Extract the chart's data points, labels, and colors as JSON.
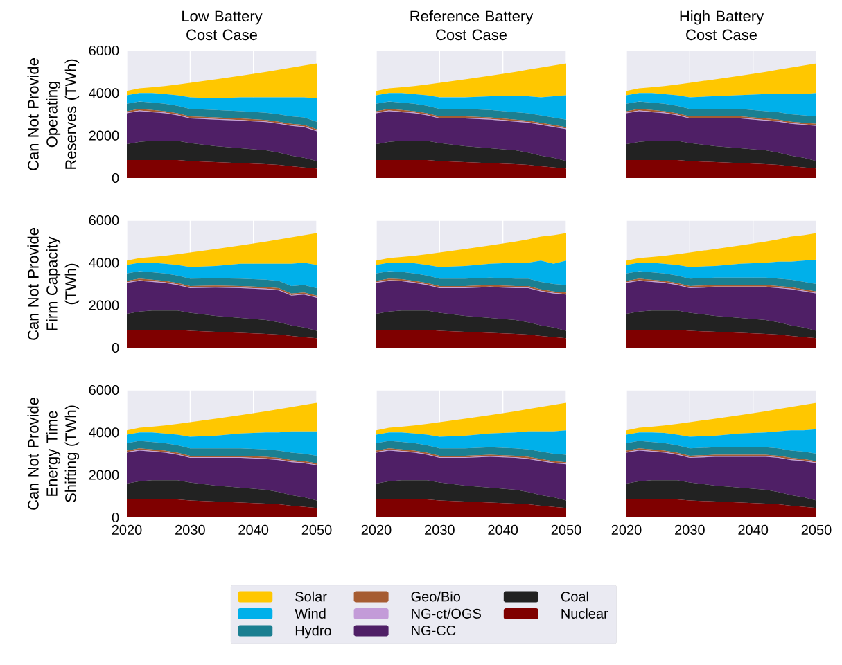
{
  "chart_data": [
    {
      "type": "area",
      "stacked": true,
      "title": "Low Battery\nCost Case",
      "ylabel": "Can Not Provide\nOperating\nReserves (TWh)",
      "x": [
        2020,
        2022,
        2024,
        2026,
        2028,
        2030,
        2034,
        2038,
        2042,
        2044,
        2046,
        2048,
        2050
      ],
      "xlim": [
        2020,
        2050
      ],
      "ylim": [
        0,
        6000
      ],
      "xticks": [
        2020,
        2030,
        2040,
        2050
      ],
      "yticks": [
        0,
        2000,
        4000,
        6000
      ],
      "grid": true,
      "tick_labels": "y",
      "series": [
        {
          "color": "#7f0000",
          "values": [
            850,
            850,
            850,
            850,
            850,
            800,
            750,
            700,
            650,
            620,
            550,
            500,
            450
          ]
        },
        {
          "color": "#222222",
          "values": [
            750,
            850,
            900,
            900,
            900,
            850,
            750,
            700,
            650,
            580,
            500,
            450,
            350
          ]
        },
        {
          "color": "#4f1f66",
          "values": [
            1450,
            1450,
            1350,
            1300,
            1200,
            1150,
            1250,
            1300,
            1330,
            1350,
            1400,
            1450,
            1400
          ]
        },
        {
          "color": "#c39bd8",
          "values": [
            30,
            30,
            30,
            30,
            30,
            30,
            30,
            30,
            30,
            30,
            30,
            30,
            30
          ]
        },
        {
          "color": "#a65c32",
          "values": [
            70,
            70,
            70,
            70,
            70,
            70,
            70,
            70,
            70,
            70,
            70,
            70,
            70
          ]
        },
        {
          "color": "#1b7f91",
          "values": [
            350,
            350,
            350,
            350,
            350,
            350,
            350,
            350,
            340,
            350,
            350,
            350,
            350
          ]
        },
        {
          "color": "#00b0ea",
          "values": [
            400,
            400,
            450,
            450,
            500,
            550,
            550,
            650,
            730,
            800,
            900,
            950,
            1100
          ]
        },
        {
          "color": "#ffc700",
          "values": [
            200,
            220,
            270,
            380,
            500,
            680,
            900,
            1020,
            1200,
            1300,
            1400,
            1500,
            1650
          ]
        }
      ]
    },
    {
      "type": "area",
      "stacked": true,
      "title": "Reference Battery\nCost Case",
      "x": [
        2020,
        2022,
        2024,
        2026,
        2028,
        2030,
        2034,
        2038,
        2042,
        2044,
        2046,
        2048,
        2050
      ],
      "xlim": [
        2020,
        2050
      ],
      "ylim": [
        0,
        6000
      ],
      "xticks": [
        2020,
        2030,
        2040,
        2050
      ],
      "yticks": [
        0,
        2000,
        4000,
        6000
      ],
      "grid": true,
      "tick_labels": false,
      "series": [
        {
          "color": "#7f0000",
          "values": [
            850,
            850,
            850,
            850,
            850,
            800,
            750,
            700,
            650,
            620,
            550,
            500,
            450
          ]
        },
        {
          "color": "#222222",
          "values": [
            750,
            850,
            900,
            900,
            900,
            850,
            750,
            700,
            650,
            580,
            500,
            450,
            350
          ]
        },
        {
          "color": "#4f1f66",
          "values": [
            1450,
            1450,
            1350,
            1300,
            1200,
            1150,
            1300,
            1350,
            1350,
            1400,
            1450,
            1450,
            1500
          ]
        },
        {
          "color": "#c39bd8",
          "values": [
            30,
            30,
            30,
            30,
            30,
            30,
            30,
            30,
            30,
            30,
            30,
            30,
            30
          ]
        },
        {
          "color": "#a65c32",
          "values": [
            70,
            70,
            70,
            70,
            70,
            70,
            70,
            70,
            70,
            70,
            70,
            70,
            70
          ]
        },
        {
          "color": "#1b7f91",
          "values": [
            350,
            350,
            350,
            350,
            350,
            350,
            350,
            350,
            350,
            350,
            350,
            350,
            350
          ]
        },
        {
          "color": "#00b0ea",
          "values": [
            400,
            400,
            450,
            450,
            500,
            550,
            550,
            650,
            750,
            800,
            850,
            1000,
            1150
          ]
        },
        {
          "color": "#ffc700",
          "values": [
            200,
            220,
            270,
            380,
            500,
            680,
            850,
            970,
            1150,
            1250,
            1400,
            1450,
            1500
          ]
        }
      ]
    },
    {
      "type": "area",
      "stacked": true,
      "title": "High Battery\nCost Case",
      "x": [
        2020,
        2022,
        2024,
        2026,
        2028,
        2030,
        2034,
        2038,
        2042,
        2044,
        2046,
        2048,
        2050
      ],
      "xlim": [
        2020,
        2050
      ],
      "ylim": [
        0,
        6000
      ],
      "xticks": [
        2020,
        2030,
        2040,
        2050
      ],
      "yticks": [
        0,
        2000,
        4000,
        6000
      ],
      "grid": true,
      "tick_labels": false,
      "series": [
        {
          "color": "#7f0000",
          "values": [
            850,
            850,
            850,
            850,
            850,
            800,
            750,
            700,
            650,
            620,
            550,
            500,
            450
          ]
        },
        {
          "color": "#222222",
          "values": [
            750,
            850,
            900,
            900,
            900,
            850,
            750,
            700,
            650,
            580,
            500,
            450,
            350
          ]
        },
        {
          "color": "#4f1f66",
          "values": [
            1450,
            1450,
            1350,
            1300,
            1200,
            1150,
            1300,
            1400,
            1400,
            1450,
            1500,
            1550,
            1650
          ]
        },
        {
          "color": "#c39bd8",
          "values": [
            30,
            30,
            30,
            30,
            30,
            30,
            30,
            30,
            30,
            30,
            30,
            30,
            30
          ]
        },
        {
          "color": "#a65c32",
          "values": [
            70,
            70,
            70,
            70,
            70,
            70,
            70,
            70,
            70,
            70,
            70,
            70,
            70
          ]
        },
        {
          "color": "#1b7f91",
          "values": [
            350,
            350,
            350,
            350,
            350,
            350,
            350,
            350,
            350,
            350,
            350,
            350,
            350
          ]
        },
        {
          "color": "#00b0ea",
          "values": [
            400,
            400,
            450,
            450,
            500,
            550,
            600,
            650,
            800,
            850,
            950,
            1000,
            1100
          ]
        },
        {
          "color": "#ffc700",
          "values": [
            200,
            220,
            270,
            380,
            500,
            680,
            800,
            920,
            1050,
            1150,
            1250,
            1350,
            1400
          ]
        }
      ]
    },
    {
      "type": "area",
      "stacked": true,
      "ylabel": "Can Not Provide\nFirm Capacity (TWh)",
      "x": [
        2020,
        2022,
        2024,
        2026,
        2028,
        2030,
        2034,
        2038,
        2042,
        2044,
        2046,
        2048,
        2050
      ],
      "xlim": [
        2020,
        2050
      ],
      "ylim": [
        0,
        6000
      ],
      "xticks": [
        2020,
        2030,
        2040,
        2050
      ],
      "yticks": [
        0,
        2000,
        4000,
        6000
      ],
      "grid": true,
      "tick_labels": "y",
      "series": [
        {
          "color": "#7f0000",
          "values": [
            850,
            850,
            850,
            850,
            850,
            800,
            750,
            700,
            650,
            620,
            550,
            500,
            450
          ]
        },
        {
          "color": "#222222",
          "values": [
            750,
            850,
            900,
            900,
            900,
            850,
            750,
            700,
            650,
            580,
            500,
            450,
            350
          ]
        },
        {
          "color": "#4f1f66",
          "values": [
            1450,
            1450,
            1350,
            1300,
            1200,
            1150,
            1330,
            1400,
            1450,
            1500,
            1400,
            1550,
            1550
          ]
        },
        {
          "color": "#c39bd8",
          "values": [
            30,
            30,
            30,
            30,
            30,
            30,
            30,
            30,
            30,
            30,
            30,
            30,
            30
          ]
        },
        {
          "color": "#a65c32",
          "values": [
            70,
            70,
            70,
            70,
            70,
            70,
            70,
            70,
            70,
            70,
            70,
            70,
            70
          ]
        },
        {
          "color": "#1b7f91",
          "values": [
            350,
            350,
            350,
            350,
            350,
            350,
            340,
            350,
            350,
            350,
            350,
            350,
            350
          ]
        },
        {
          "color": "#00b0ea",
          "values": [
            400,
            400,
            450,
            450,
            500,
            550,
            580,
            700,
            750,
            800,
            1050,
            1050,
            1100
          ]
        },
        {
          "color": "#ffc700",
          "values": [
            200,
            220,
            270,
            380,
            500,
            680,
            800,
            870,
            1050,
            1150,
            1250,
            1300,
            1500
          ]
        }
      ]
    },
    {
      "type": "area",
      "stacked": true,
      "x": [
        2020,
        2022,
        2024,
        2026,
        2028,
        2030,
        2034,
        2038,
        2042,
        2044,
        2046,
        2048,
        2050
      ],
      "xlim": [
        2020,
        2050
      ],
      "ylim": [
        0,
        6000
      ],
      "xticks": [
        2020,
        2030,
        2040,
        2050
      ],
      "yticks": [
        0,
        2000,
        4000,
        6000
      ],
      "grid": true,
      "tick_labels": false,
      "series": [
        {
          "color": "#7f0000",
          "values": [
            850,
            850,
            850,
            850,
            850,
            800,
            750,
            700,
            650,
            620,
            550,
            500,
            450
          ]
        },
        {
          "color": "#222222",
          "values": [
            750,
            850,
            900,
            900,
            900,
            850,
            750,
            700,
            650,
            580,
            500,
            450,
            350
          ]
        },
        {
          "color": "#4f1f66",
          "values": [
            1450,
            1450,
            1380,
            1300,
            1200,
            1150,
            1300,
            1450,
            1500,
            1600,
            1600,
            1600,
            1700
          ]
        },
        {
          "color": "#c39bd8",
          "values": [
            30,
            30,
            30,
            30,
            30,
            30,
            30,
            30,
            30,
            30,
            30,
            30,
            30
          ]
        },
        {
          "color": "#a65c32",
          "values": [
            70,
            70,
            70,
            70,
            70,
            70,
            70,
            70,
            70,
            70,
            70,
            70,
            70
          ]
        },
        {
          "color": "#1b7f91",
          "values": [
            350,
            350,
            340,
            350,
            350,
            350,
            350,
            350,
            350,
            350,
            350,
            350,
            350
          ]
        },
        {
          "color": "#00b0ea",
          "values": [
            400,
            400,
            430,
            480,
            500,
            550,
            600,
            650,
            750,
            750,
            1000,
            950,
            1150
          ]
        },
        {
          "color": "#ffc700",
          "values": [
            200,
            220,
            270,
            350,
            500,
            680,
            800,
            870,
            1000,
            1100,
            1130,
            1350,
            1300
          ]
        }
      ]
    },
    {
      "type": "area",
      "stacked": true,
      "x": [
        2020,
        2022,
        2024,
        2026,
        2028,
        2030,
        2034,
        2038,
        2042,
        2044,
        2046,
        2048,
        2050
      ],
      "xlim": [
        2020,
        2050
      ],
      "ylim": [
        0,
        6000
      ],
      "xticks": [
        2020,
        2030,
        2040,
        2050
      ],
      "yticks": [
        0,
        2000,
        4000,
        6000
      ],
      "grid": true,
      "tick_labels": false,
      "series": [
        {
          "color": "#7f0000",
          "values": [
            850,
            850,
            850,
            850,
            850,
            800,
            750,
            700,
            650,
            620,
            550,
            500,
            450
          ]
        },
        {
          "color": "#222222",
          "values": [
            750,
            850,
            900,
            900,
            900,
            850,
            750,
            700,
            650,
            580,
            500,
            450,
            350
          ]
        },
        {
          "color": "#4f1f66",
          "values": [
            1450,
            1450,
            1350,
            1300,
            1200,
            1150,
            1350,
            1450,
            1550,
            1600,
            1700,
            1700,
            1750
          ]
        },
        {
          "color": "#c39bd8",
          "values": [
            30,
            30,
            30,
            30,
            30,
            30,
            30,
            30,
            30,
            30,
            30,
            30,
            30
          ]
        },
        {
          "color": "#a65c32",
          "values": [
            70,
            70,
            70,
            70,
            70,
            70,
            70,
            70,
            70,
            70,
            70,
            70,
            70
          ]
        },
        {
          "color": "#1b7f91",
          "values": [
            350,
            350,
            350,
            350,
            350,
            350,
            350,
            350,
            350,
            350,
            350,
            350,
            350
          ]
        },
        {
          "color": "#00b0ea",
          "values": [
            400,
            400,
            450,
            450,
            500,
            550,
            550,
            650,
            700,
            800,
            850,
            1000,
            1150
          ]
        },
        {
          "color": "#ffc700",
          "values": [
            200,
            220,
            270,
            380,
            500,
            680,
            800,
            870,
            1000,
            1050,
            1180,
            1200,
            1250
          ]
        }
      ]
    },
    {
      "type": "area",
      "stacked": true,
      "ylabel": "Can Not Provide\nEnergy Time\nShifting (TWh)",
      "x": [
        2020,
        2022,
        2024,
        2026,
        2028,
        2030,
        2034,
        2038,
        2042,
        2044,
        2046,
        2048,
        2050
      ],
      "xlim": [
        2020,
        2050
      ],
      "ylim": [
        0,
        6000
      ],
      "xticks": [
        2020,
        2030,
        2040,
        2050
      ],
      "yticks": [
        0,
        2000,
        4000,
        6000
      ],
      "grid": true,
      "series": [
        {
          "color": "#7f0000",
          "values": [
            850,
            850,
            850,
            850,
            850,
            800,
            750,
            700,
            650,
            620,
            550,
            500,
            450
          ]
        },
        {
          "color": "#222222",
          "values": [
            750,
            850,
            900,
            900,
            900,
            850,
            750,
            700,
            650,
            580,
            500,
            450,
            350
          ]
        },
        {
          "color": "#4f1f66",
          "values": [
            1450,
            1450,
            1350,
            1300,
            1200,
            1150,
            1300,
            1400,
            1450,
            1500,
            1550,
            1600,
            1650
          ]
        },
        {
          "color": "#c39bd8",
          "values": [
            30,
            30,
            30,
            30,
            30,
            30,
            30,
            30,
            30,
            30,
            30,
            30,
            30
          ]
        },
        {
          "color": "#a65c32",
          "values": [
            70,
            70,
            70,
            70,
            70,
            70,
            70,
            70,
            70,
            70,
            70,
            70,
            70
          ]
        },
        {
          "color": "#1b7f91",
          "values": [
            350,
            350,
            350,
            350,
            350,
            350,
            350,
            350,
            350,
            350,
            350,
            350,
            350
          ]
        },
        {
          "color": "#00b0ea",
          "values": [
            400,
            400,
            450,
            450,
            500,
            550,
            600,
            700,
            800,
            850,
            1000,
            1050,
            1150
          ]
        },
        {
          "color": "#ffc700",
          "values": [
            200,
            220,
            270,
            380,
            500,
            680,
            800,
            870,
            1000,
            1100,
            1150,
            1250,
            1350
          ]
        }
      ]
    },
    {
      "type": "area",
      "stacked": true,
      "x": [
        2020,
        2022,
        2024,
        2026,
        2028,
        2030,
        2034,
        2038,
        2042,
        2044,
        2046,
        2048,
        2050
      ],
      "xlim": [
        2020,
        2050
      ],
      "ylim": [
        0,
        6000
      ],
      "xticks": [
        2020,
        2030,
        2040,
        2050
      ],
      "yticks": [
        0,
        2000,
        4000,
        6000
      ],
      "grid": true,
      "tick_labels": "x",
      "legend": "bottom",
      "series": [
        {
          "name": "Nuclear",
          "color": "#7f0000",
          "values": [
            850,
            850,
            850,
            850,
            850,
            800,
            750,
            700,
            650,
            620,
            550,
            500,
            450
          ]
        },
        {
          "name": "Coal",
          "color": "#222222",
          "values": [
            750,
            850,
            900,
            900,
            900,
            850,
            750,
            700,
            650,
            580,
            500,
            450,
            350
          ]
        },
        {
          "name": "NG-CC",
          "color": "#4f1f66",
          "values": [
            1450,
            1450,
            1350,
            1300,
            1200,
            1150,
            1300,
            1450,
            1500,
            1550,
            1600,
            1600,
            1700
          ]
        },
        {
          "name": "NG-ct/OGS",
          "color": "#c39bd8",
          "values": [
            30,
            30,
            30,
            30,
            30,
            30,
            30,
            30,
            30,
            30,
            30,
            30,
            30
          ]
        },
        {
          "name": "Geo/Bio",
          "color": "#a65c32",
          "values": [
            70,
            70,
            70,
            70,
            70,
            70,
            70,
            70,
            70,
            70,
            70,
            70,
            70
          ]
        },
        {
          "name": "Hydro",
          "color": "#1b7f91",
          "values": [
            350,
            350,
            350,
            350,
            350,
            350,
            350,
            350,
            350,
            350,
            350,
            350,
            350
          ]
        },
        {
          "name": "Wind",
          "color": "#00b0ea",
          "values": [
            400,
            400,
            450,
            450,
            500,
            550,
            600,
            650,
            750,
            850,
            950,
            1050,
            1150
          ]
        },
        {
          "name": "Solar",
          "color": "#ffc700",
          "values": [
            200,
            220,
            270,
            380,
            500,
            680,
            800,
            870,
            1000,
            1050,
            1150,
            1250,
            1300
          ]
        }
      ]
    },
    {
      "type": "area",
      "stacked": true,
      "x": [
        2020,
        2022,
        2024,
        2026,
        2028,
        2030,
        2034,
        2038,
        2042,
        2044,
        2046,
        2048,
        2050
      ],
      "xlim": [
        2020,
        2050
      ],
      "ylim": [
        0,
        6000
      ],
      "xticks": [
        2020,
        2030,
        2040,
        2050
      ],
      "yticks": [
        0,
        2000,
        4000,
        6000
      ],
      "grid": true,
      "tick_labels": "x",
      "series": [
        {
          "color": "#7f0000",
          "values": [
            850,
            850,
            850,
            850,
            850,
            800,
            750,
            700,
            650,
            620,
            550,
            500,
            450
          ]
        },
        {
          "color": "#222222",
          "values": [
            750,
            850,
            900,
            900,
            900,
            850,
            750,
            700,
            650,
            580,
            500,
            450,
            350
          ]
        },
        {
          "color": "#4f1f66",
          "values": [
            1450,
            1450,
            1350,
            1300,
            1200,
            1150,
            1350,
            1450,
            1550,
            1600,
            1650,
            1700,
            1750
          ]
        },
        {
          "color": "#c39bd8",
          "values": [
            30,
            30,
            30,
            30,
            30,
            30,
            30,
            30,
            30,
            30,
            30,
            30,
            30
          ]
        },
        {
          "color": "#a65c32",
          "values": [
            70,
            70,
            70,
            70,
            70,
            70,
            70,
            70,
            70,
            70,
            70,
            70,
            70
          ]
        },
        {
          "color": "#1b7f91",
          "values": [
            350,
            350,
            350,
            350,
            350,
            350,
            350,
            350,
            350,
            350,
            350,
            350,
            350
          ]
        },
        {
          "color": "#00b0ea",
          "values": [
            400,
            400,
            450,
            480,
            500,
            550,
            550,
            650,
            700,
            800,
            950,
            1000,
            1150
          ]
        },
        {
          "color": "#ffc700",
          "values": [
            200,
            220,
            270,
            350,
            500,
            680,
            800,
            870,
            1000,
            1050,
            1100,
            1200,
            1250
          ]
        }
      ]
    }
  ]
}
